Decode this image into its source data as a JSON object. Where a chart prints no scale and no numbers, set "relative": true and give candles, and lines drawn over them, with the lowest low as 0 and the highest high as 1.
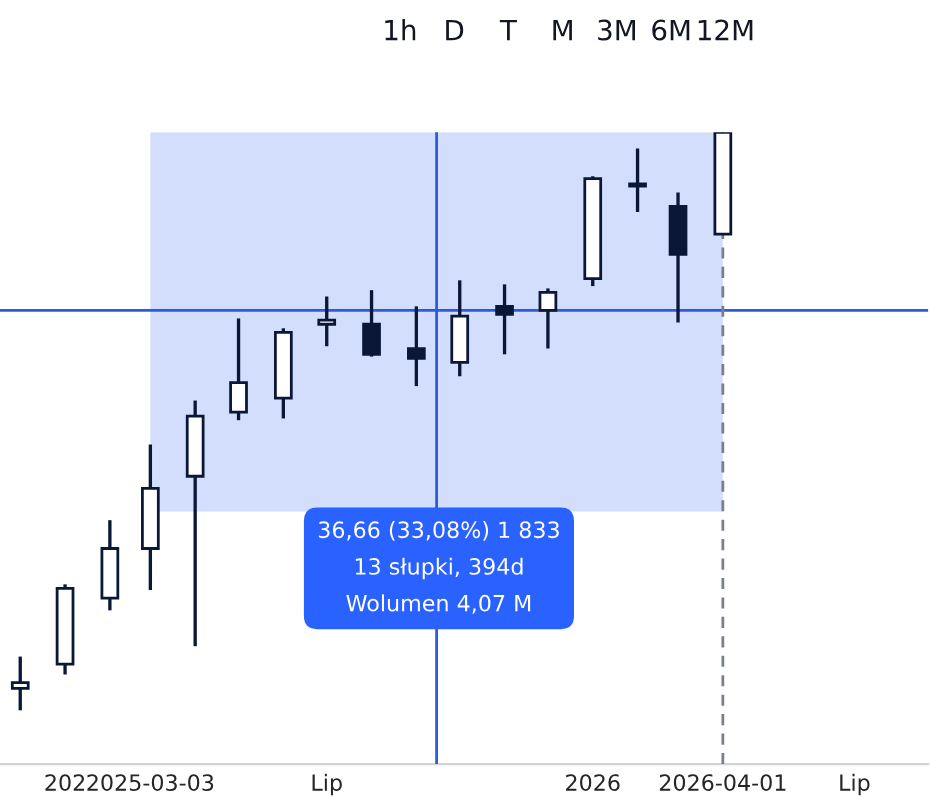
{
  "chart_data": {
    "type": "candlestick",
    "relative": true,
    "x": [
      "2024-12-01",
      "2025-01-01",
      "2025-02-01",
      "2025-03-01",
      "2025-04-01",
      "2025-05-01",
      "2025-06-01",
      "2025-07-01",
      "2025-08-01",
      "2025-09-01",
      "2025-10-01",
      "2025-11-01",
      "2025-12-01",
      "2026-01-01",
      "2026-02-01",
      "2026-03-01",
      "2026-04-01"
    ],
    "ohlc": [
      [
        0.038,
        0.093,
        0,
        0.048
      ],
      [
        0.08,
        0.218,
        0.062,
        0.211
      ],
      [
        0.194,
        0.329,
        0.173,
        0.28
      ],
      [
        0.28,
        0.46,
        0.208,
        0.384
      ],
      [
        0.405,
        0.536,
        0.111,
        0.509
      ],
      [
        0.516,
        0.678,
        0.502,
        0.567
      ],
      [
        0.54,
        0.661,
        0.505,
        0.654
      ],
      [
        0.668,
        0.716,
        0.63,
        0.675
      ],
      [
        0.668,
        0.727,
        0.612,
        0.616
      ],
      [
        0.626,
        0.699,
        0.561,
        0.609
      ],
      [
        0.602,
        0.744,
        0.578,
        0.682
      ],
      [
        0.699,
        0.737,
        0.616,
        0.685
      ],
      [
        0.692,
        0.73,
        0.626,
        0.723
      ],
      [
        0.747,
        0.924,
        0.734,
        0.92
      ],
      [
        0.91,
        0.972,
        0.862,
        0.907
      ],
      [
        0.872,
        0.896,
        0.671,
        0.789
      ],
      [
        0.824,
        1,
        0.824,
        1
      ]
    ],
    "xlim": [
      "2024-11-17",
      "2026-08-21"
    ],
    "xticks": [
      {
        "value": "2025-01-01",
        "label": "202"
      },
      {
        "value": "2025-03-01",
        "label": "2025-03-03"
      },
      {
        "value": "2025-07-01",
        "label": "Lip"
      },
      {
        "value": "2026-01-01",
        "label": "2026"
      },
      {
        "value": "2026-04-01",
        "label": "2026-04-01"
      },
      {
        "value": "2026-07-01",
        "label": "Lip"
      }
    ],
    "bands": [
      {
        "axis": "x",
        "from": "2025-03-01",
        "to": "2026-04-01",
        "color": "#d2defc"
      }
    ],
    "ref_lines": [
      {
        "axis": "y",
        "value": 0.692,
        "color": "#2f5bd8",
        "line_style": "solid"
      },
      {
        "axis": "x",
        "value": "2025-09-15",
        "color": "#2f5bd8",
        "line_style": "solid"
      },
      {
        "axis": "x",
        "value": "2026-04-01",
        "color": "#7a7f8c",
        "line_style": "dashed"
      }
    ],
    "annotations": [
      "36,66 (33,08%) 1 833\n13 słupki, 394d\nWolumen 4,07 M",
      "1h",
      "D",
      "T",
      "M",
      "3M",
      "6M",
      "12M"
    ]
  }
}
